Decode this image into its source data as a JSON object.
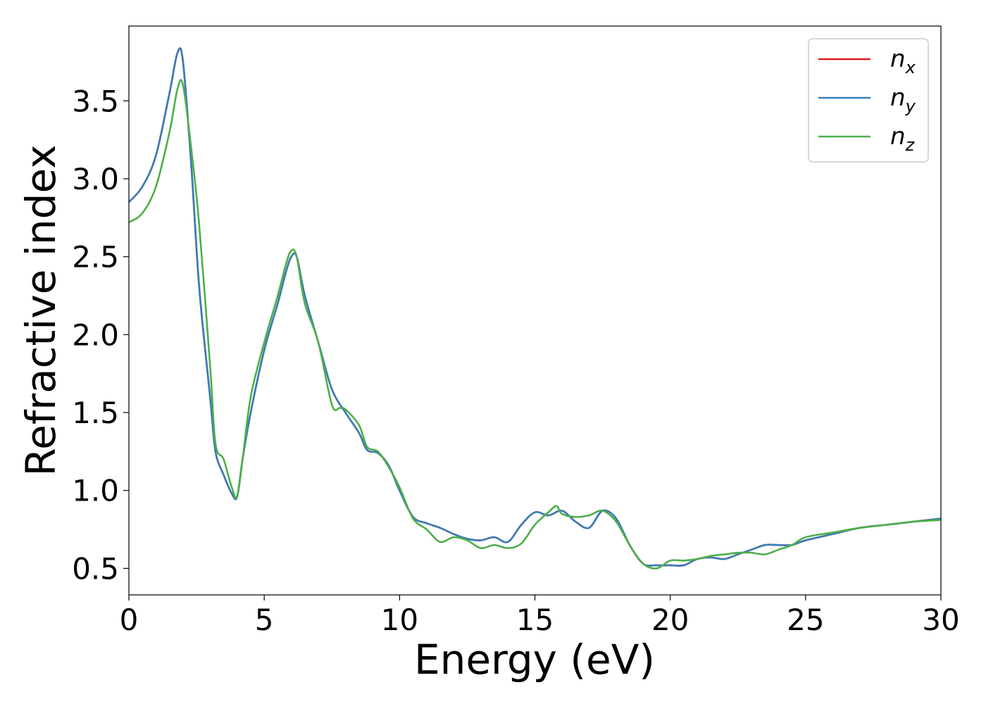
{
  "chart_data": {
    "type": "line",
    "title": "",
    "xlabel": "Energy (eV)",
    "ylabel": "Refractive index",
    "xlim": [
      0,
      30
    ],
    "ylim": [
      0.33,
      3.98
    ],
    "xticks": [
      0,
      5,
      10,
      15,
      20,
      25,
      30
    ],
    "xtick_labels": [
      "0",
      "5",
      "10",
      "15",
      "20",
      "25",
      "30"
    ],
    "yticks": [
      0.5,
      1.0,
      1.5,
      2.0,
      2.5,
      3.0,
      3.5
    ],
    "ytick_labels": [
      "0.5",
      "1.0",
      "1.5",
      "2.0",
      "2.5",
      "3.0",
      "3.5"
    ],
    "grid": false,
    "legend_position": "top-right",
    "series": [
      {
        "name": "n_x",
        "legend_base": "n",
        "legend_sub": "x",
        "color": "#e41a1c",
        "x": [
          0,
          0.5,
          1.0,
          1.5,
          1.8,
          2.0,
          2.3,
          2.6,
          3.0,
          3.2,
          3.5,
          3.8,
          4.0,
          4.2,
          4.5,
          5.0,
          5.5,
          5.8,
          6.0,
          6.2,
          6.5,
          7.0,
          7.5,
          8.0,
          8.5,
          8.8,
          9.2,
          9.6,
          10.0,
          10.5,
          11.0,
          11.5,
          12.0,
          12.5,
          13.0,
          13.5,
          14.0,
          14.5,
          15.0,
          15.5,
          16.0,
          16.5,
          17.0,
          17.5,
          18.0,
          18.5,
          19.0,
          19.5,
          20.0,
          20.5,
          21.0,
          21.5,
          22.0,
          22.5,
          23.0,
          23.5,
          24.0,
          24.5,
          25.0,
          26.0,
          27.0,
          28.0,
          29.0,
          30.0
        ],
        "y": [
          2.85,
          2.95,
          3.15,
          3.55,
          3.81,
          3.75,
          3.1,
          2.3,
          1.6,
          1.25,
          1.1,
          0.98,
          0.96,
          1.2,
          1.5,
          1.9,
          2.2,
          2.4,
          2.5,
          2.5,
          2.25,
          1.95,
          1.65,
          1.5,
          1.37,
          1.26,
          1.24,
          1.16,
          1.0,
          0.83,
          0.79,
          0.76,
          0.72,
          0.69,
          0.68,
          0.7,
          0.67,
          0.78,
          0.86,
          0.84,
          0.87,
          0.8,
          0.76,
          0.87,
          0.82,
          0.65,
          0.53,
          0.52,
          0.52,
          0.52,
          0.56,
          0.57,
          0.56,
          0.59,
          0.62,
          0.65,
          0.65,
          0.65,
          0.68,
          0.72,
          0.76,
          0.78,
          0.8,
          0.82
        ]
      },
      {
        "name": "n_y",
        "legend_base": "n",
        "legend_sub": "y",
        "color": "#377eb8",
        "x": [
          0,
          0.5,
          1.0,
          1.5,
          1.8,
          2.0,
          2.3,
          2.6,
          3.0,
          3.2,
          3.5,
          3.8,
          4.0,
          4.2,
          4.5,
          5.0,
          5.5,
          5.8,
          6.0,
          6.2,
          6.5,
          7.0,
          7.5,
          8.0,
          8.5,
          8.8,
          9.2,
          9.6,
          10.0,
          10.5,
          11.0,
          11.5,
          12.0,
          12.5,
          13.0,
          13.5,
          14.0,
          14.5,
          15.0,
          15.5,
          16.0,
          16.5,
          17.0,
          17.5,
          18.0,
          18.5,
          19.0,
          19.5,
          20.0,
          20.5,
          21.0,
          21.5,
          22.0,
          22.5,
          23.0,
          23.5,
          24.0,
          24.5,
          25.0,
          26.0,
          27.0,
          28.0,
          29.0,
          30.0
        ],
        "y": [
          2.85,
          2.95,
          3.15,
          3.55,
          3.81,
          3.75,
          3.1,
          2.3,
          1.6,
          1.25,
          1.1,
          0.98,
          0.96,
          1.2,
          1.5,
          1.9,
          2.2,
          2.4,
          2.5,
          2.5,
          2.25,
          1.95,
          1.65,
          1.5,
          1.37,
          1.26,
          1.24,
          1.16,
          1.0,
          0.83,
          0.79,
          0.76,
          0.72,
          0.69,
          0.68,
          0.7,
          0.67,
          0.78,
          0.86,
          0.84,
          0.87,
          0.8,
          0.76,
          0.87,
          0.82,
          0.65,
          0.53,
          0.52,
          0.52,
          0.52,
          0.56,
          0.57,
          0.56,
          0.59,
          0.62,
          0.65,
          0.65,
          0.65,
          0.68,
          0.72,
          0.76,
          0.78,
          0.8,
          0.82
        ]
      },
      {
        "name": "n_z",
        "legend_base": "n",
        "legend_sub": "z",
        "color": "#4daf4a",
        "x": [
          0,
          0.5,
          1.0,
          1.5,
          1.8,
          2.0,
          2.3,
          2.6,
          3.0,
          3.2,
          3.5,
          3.8,
          4.0,
          4.2,
          4.5,
          5.0,
          5.5,
          5.8,
          6.0,
          6.2,
          6.5,
          7.0,
          7.5,
          7.8,
          8.0,
          8.5,
          8.8,
          9.2,
          9.6,
          10.0,
          10.5,
          11.0,
          11.5,
          12.0,
          12.5,
          13.0,
          13.5,
          14.0,
          14.5,
          15.0,
          15.5,
          15.8,
          16.0,
          16.5,
          17.0,
          17.5,
          18.0,
          18.5,
          19.0,
          19.5,
          20.0,
          20.5,
          21.0,
          21.5,
          22.0,
          22.5,
          23.0,
          23.5,
          24.0,
          24.5,
          25.0,
          26.0,
          27.0,
          28.0,
          29.0,
          30.0
        ],
        "y": [
          2.72,
          2.78,
          2.95,
          3.3,
          3.58,
          3.6,
          3.2,
          2.7,
          1.8,
          1.3,
          1.2,
          1.02,
          0.96,
          1.2,
          1.6,
          1.95,
          2.25,
          2.45,
          2.54,
          2.5,
          2.2,
          1.95,
          1.55,
          1.53,
          1.52,
          1.42,
          1.28,
          1.25,
          1.15,
          1.02,
          0.82,
          0.75,
          0.67,
          0.7,
          0.68,
          0.63,
          0.65,
          0.63,
          0.66,
          0.78,
          0.86,
          0.9,
          0.85,
          0.83,
          0.84,
          0.87,
          0.8,
          0.65,
          0.53,
          0.5,
          0.55,
          0.55,
          0.56,
          0.58,
          0.59,
          0.6,
          0.6,
          0.59,
          0.62,
          0.65,
          0.7,
          0.73,
          0.76,
          0.78,
          0.8,
          0.81
        ]
      }
    ]
  }
}
